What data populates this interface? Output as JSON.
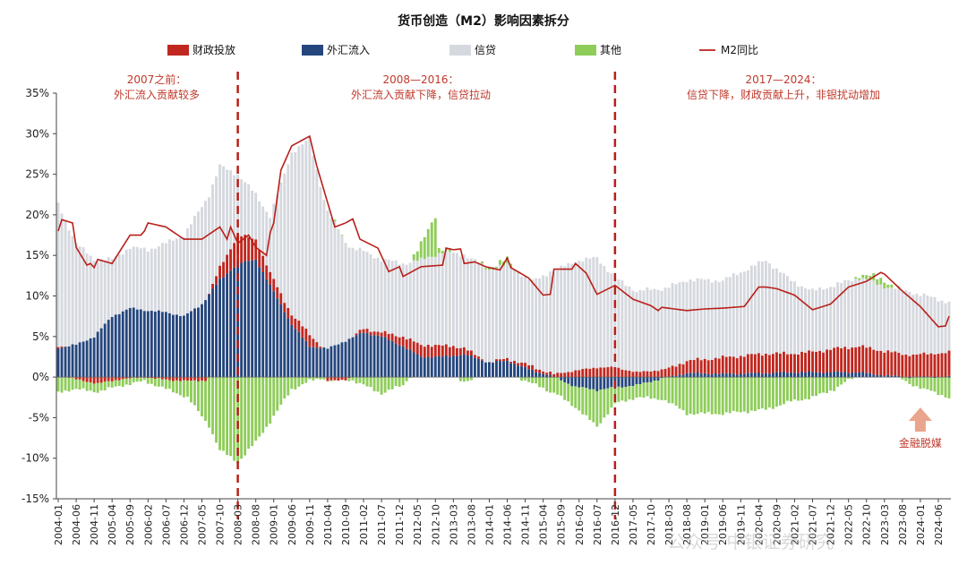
{
  "chart_data": {
    "type": "bar",
    "title": "货币创造（M2）影响因素拆分",
    "legend": [
      {
        "name": "财政投放",
        "kind": "bar",
        "color": "#c0271f"
      },
      {
        "name": "外汇流入",
        "kind": "bar",
        "color": "#25467d"
      },
      {
        "name": "信贷",
        "kind": "bar",
        "color": "#d5d8de"
      },
      {
        "name": "其他",
        "kind": "bar",
        "color": "#8fcd5a"
      },
      {
        "name": "M2同比",
        "kind": "line",
        "color": "#b8201a"
      }
    ],
    "y_axis": {
      "min": -15,
      "max": 35,
      "step": 5,
      "unit": "%",
      "ticks": [
        "35%",
        "30%",
        "25%",
        "20%",
        "15%",
        "10%",
        "5%",
        "0%",
        "-5%",
        "-10%",
        "-15%"
      ]
    },
    "x_start": "2004-01",
    "x_end": "2024-09",
    "x_ticks": [
      "2004-01",
      "2004-06",
      "2004-11",
      "2005-04",
      "2005-09",
      "2006-02",
      "2006-07",
      "2006-12",
      "2007-05",
      "2007-10",
      "2008-03",
      "2008-08",
      "2009-01",
      "2009-06",
      "2009-11",
      "2010-04",
      "2010-09",
      "2011-02",
      "2011-07",
      "2011-12",
      "2012-05",
      "2012-10",
      "2013-03",
      "2013-08",
      "2014-01",
      "2014-06",
      "2014-11",
      "2015-04",
      "2015-09",
      "2016-02",
      "2016-07",
      "2016-12",
      "2017-05",
      "2017-10",
      "2018-03",
      "2018-08",
      "2019-01",
      "2019-06",
      "2019-11",
      "2020-04",
      "2020-09",
      "2021-02",
      "2021-07",
      "2021-12",
      "2022-05",
      "2022-10",
      "2023-03",
      "2023-08",
      "2024-01",
      "2024-06"
    ],
    "series_anchor_points": {
      "财政投放": [
        [
          "2004-01",
          0.3
        ],
        [
          "2004-06",
          -0.3
        ],
        [
          "2004-12",
          -0.8
        ],
        [
          "2005-06",
          -0.3
        ],
        [
          "2006-01",
          0
        ],
        [
          "2006-06",
          -0.3
        ],
        [
          "2007-01",
          -0.5
        ],
        [
          "2007-06",
          -0.4
        ],
        [
          "2007-10",
          1.5
        ],
        [
          "2008-03",
          3.5
        ],
        [
          "2008-08",
          2.5
        ],
        [
          "2008-12",
          1.5
        ],
        [
          "2009-06",
          1.2
        ],
        [
          "2009-11",
          1.5
        ],
        [
          "2010-04",
          -0.5
        ],
        [
          "2010-09",
          -0.3
        ],
        [
          "2011-02",
          0.5
        ],
        [
          "2011-07",
          0.5
        ],
        [
          "2012-01",
          1.2
        ],
        [
          "2012-08",
          1.5
        ],
        [
          "2013-03",
          1.2
        ],
        [
          "2013-08",
          0.5
        ],
        [
          "2014-01",
          0
        ],
        [
          "2014-06",
          0.3
        ],
        [
          "2015-01",
          0.5
        ],
        [
          "2015-06",
          0.3
        ],
        [
          "2016-01",
          0.8
        ],
        [
          "2016-07",
          1.2
        ],
        [
          "2016-12",
          1.2
        ],
        [
          "2017-06",
          0.6
        ],
        [
          "2018-01",
          0.9
        ],
        [
          "2018-08",
          1.5
        ],
        [
          "2019-06",
          2.0
        ],
        [
          "2020-06",
          2.4
        ],
        [
          "2021-01",
          2.3
        ],
        [
          "2021-07",
          2.5
        ],
        [
          "2022-01",
          2.9
        ],
        [
          "2022-08",
          3.2
        ],
        [
          "2023-03",
          3.0
        ],
        [
          "2023-10",
          2.7
        ],
        [
          "2024-09",
          3.0
        ]
      ],
      "外汇流入": [
        [
          "2004-01",
          3.6
        ],
        [
          "2004-06",
          4.0
        ],
        [
          "2004-11",
          5.0
        ],
        [
          "2005-04",
          7.5
        ],
        [
          "2005-09",
          8.5
        ],
        [
          "2006-02",
          8.2
        ],
        [
          "2006-07",
          8.0
        ],
        [
          "2006-12",
          7.5
        ],
        [
          "2007-05",
          9.0
        ],
        [
          "2007-10",
          12.0
        ],
        [
          "2008-03",
          14.0
        ],
        [
          "2008-08",
          14.5
        ],
        [
          "2009-01",
          10.5
        ],
        [
          "2009-06",
          6.5
        ],
        [
          "2009-11",
          3.8
        ],
        [
          "2010-04",
          3.5
        ],
        [
          "2010-09",
          4.5
        ],
        [
          "2011-02",
          5.5
        ],
        [
          "2011-07",
          5.0
        ],
        [
          "2012-01",
          3.8
        ],
        [
          "2012-06",
          2.5
        ],
        [
          "2012-12",
          2.5
        ],
        [
          "2013-06",
          2.8
        ],
        [
          "2014-01",
          1.8
        ],
        [
          "2014-06",
          2.0
        ],
        [
          "2015-01",
          0.8
        ],
        [
          "2015-06",
          0.2
        ],
        [
          "2016-01",
          -1.2
        ],
        [
          "2016-07",
          -1.6
        ],
        [
          "2016-12",
          -1.3
        ],
        [
          "2017-06",
          -1.0
        ],
        [
          "2018-01",
          -0.2
        ],
        [
          "2018-08",
          0.5
        ],
        [
          "2019-06",
          0.4
        ],
        [
          "2020-06",
          0.5
        ],
        [
          "2021-01",
          0.6
        ],
        [
          "2021-07",
          0.6
        ],
        [
          "2022-01",
          0.6
        ],
        [
          "2022-08",
          0.6
        ],
        [
          "2023-03",
          0.2
        ],
        [
          "2023-10",
          0
        ],
        [
          "2024-09",
          0
        ]
      ],
      "信贷": [
        [
          "2004-01",
          17.5
        ],
        [
          "2004-06",
          12.5
        ],
        [
          "2004-11",
          9.5
        ],
        [
          "2005-04",
          7.0
        ],
        [
          "2005-09",
          7.5
        ],
        [
          "2006-02",
          7.5
        ],
        [
          "2006-07",
          8.5
        ],
        [
          "2006-12",
          10.0
        ],
        [
          "2007-05",
          12.0
        ],
        [
          "2007-10",
          12.5
        ],
        [
          "2008-03",
          7.5
        ],
        [
          "2008-08",
          5.5
        ],
        [
          "2008-12",
          7.0
        ],
        [
          "2009-06",
          20.0
        ],
        [
          "2009-11",
          24.0
        ],
        [
          "2010-04",
          17.0
        ],
        [
          "2010-09",
          12.0
        ],
        [
          "2011-02",
          9.5
        ],
        [
          "2011-07",
          9.0
        ],
        [
          "2012-01",
          9.0
        ],
        [
          "2012-06",
          10.5
        ],
        [
          "2012-12",
          11.5
        ],
        [
          "2013-06",
          11.5
        ],
        [
          "2014-01",
          11.5
        ],
        [
          "2014-06",
          11.5
        ],
        [
          "2015-01",
          10.5
        ],
        [
          "2015-06",
          12.5
        ],
        [
          "2016-01",
          13.5
        ],
        [
          "2016-07",
          13.5
        ],
        [
          "2016-12",
          11.0
        ],
        [
          "2017-06",
          10.0
        ],
        [
          "2018-01",
          10.0
        ],
        [
          "2018-08",
          10.0
        ],
        [
          "2019-06",
          9.5
        ],
        [
          "2020-06",
          11.5
        ],
        [
          "2021-01",
          9.0
        ],
        [
          "2021-07",
          7.5
        ],
        [
          "2022-01",
          7.8
        ],
        [
          "2022-08",
          8.5
        ],
        [
          "2023-03",
          8.0
        ],
        [
          "2023-10",
          7.8
        ],
        [
          "2024-09",
          6.2
        ]
      ],
      "其他": [
        [
          "2004-01",
          -2.0
        ],
        [
          "2004-06",
          -1.2
        ],
        [
          "2004-12",
          -1.0
        ],
        [
          "2005-06",
          -0.8
        ],
        [
          "2006-01",
          -0.5
        ],
        [
          "2006-06",
          -1.0
        ],
        [
          "2007-01",
          -2.0
        ],
        [
          "2007-06",
          -5.0
        ],
        [
          "2007-10",
          -9.0
        ],
        [
          "2008-03",
          -10.5
        ],
        [
          "2008-08",
          -8.0
        ],
        [
          "2008-12",
          -5.5
        ],
        [
          "2009-06",
          -1.5
        ],
        [
          "2009-11",
          -0.5
        ],
        [
          "2010-04",
          0
        ],
        [
          "2010-09",
          0
        ],
        [
          "2011-02",
          -1.0
        ],
        [
          "2011-07",
          -2.0
        ],
        [
          "2012-01",
          -1.0
        ],
        [
          "2012-06",
          1.8
        ],
        [
          "2012-10",
          5.0
        ],
        [
          "2012-11",
          0.6
        ],
        [
          "2013-06",
          -0.5
        ],
        [
          "2014-01",
          0.3
        ],
        [
          "2014-06",
          0.6
        ],
        [
          "2015-01",
          -0.8
        ],
        [
          "2015-06",
          -1.8
        ],
        [
          "2016-01",
          -2.5
        ],
        [
          "2016-07",
          -4.5
        ],
        [
          "2016-12",
          -2.0
        ],
        [
          "2017-06",
          -1.5
        ],
        [
          "2018-01",
          -2.5
        ],
        [
          "2018-08",
          -4.5
        ],
        [
          "2019-06",
          -4.5
        ],
        [
          "2020-06",
          -4.0
        ],
        [
          "2021-01",
          -3.0
        ],
        [
          "2021-07",
          -2.5
        ],
        [
          "2022-01",
          -1.5
        ],
        [
          "2022-08",
          0.4
        ],
        [
          "2023-03",
          0.8
        ],
        [
          "2023-10",
          -0.8
        ],
        [
          "2024-09",
          -2.5
        ]
      ],
      "M2同比": [
        [
          "2004-01",
          18
        ],
        [
          "2004-02",
          19.4
        ],
        [
          "2004-05",
          19
        ],
        [
          "2004-06",
          16
        ],
        [
          "2004-09",
          13.8
        ],
        [
          "2004-10",
          14
        ],
        [
          "2004-11",
          13.5
        ],
        [
          "2004-12",
          14.5
        ],
        [
          "2005-04",
          14
        ],
        [
          "2005-09",
          17.5
        ],
        [
          "2005-12",
          17.5
        ],
        [
          "2006-01",
          18
        ],
        [
          "2006-02",
          19.0
        ],
        [
          "2006-07",
          18.5
        ],
        [
          "2006-12",
          17
        ],
        [
          "2007-05",
          17
        ],
        [
          "2007-10",
          18.5
        ],
        [
          "2007-12",
          17
        ],
        [
          "2008-01",
          18.5
        ],
        [
          "2008-03",
          16.5
        ],
        [
          "2008-06",
          17.5
        ],
        [
          "2008-08",
          16
        ],
        [
          "2008-11",
          15
        ],
        [
          "2008-12",
          17.8
        ],
        [
          "2009-01",
          19
        ],
        [
          "2009-03",
          25.5
        ],
        [
          "2009-06",
          28.5
        ],
        [
          "2009-11",
          29.7
        ],
        [
          "2010-01",
          26
        ],
        [
          "2010-04",
          21.5
        ],
        [
          "2010-06",
          18.5
        ],
        [
          "2010-09",
          19.0
        ],
        [
          "2010-11",
          19.5
        ],
        [
          "2011-01",
          17
        ],
        [
          "2011-06",
          15.9
        ],
        [
          "2011-09",
          13.0
        ],
        [
          "2011-12",
          13.6
        ],
        [
          "2012-01",
          12.4
        ],
        [
          "2012-06",
          13.6
        ],
        [
          "2012-12",
          13.8
        ],
        [
          "2013-01",
          15.9
        ],
        [
          "2013-03",
          15.7
        ],
        [
          "2013-05",
          15.8
        ],
        [
          "2013-06",
          14.0
        ],
        [
          "2013-09",
          14.2
        ],
        [
          "2013-12",
          13.6
        ],
        [
          "2014-04",
          13.2
        ],
        [
          "2014-06",
          14.7
        ],
        [
          "2014-07",
          13.5
        ],
        [
          "2014-12",
          12.2
        ],
        [
          "2015-04",
          10.1
        ],
        [
          "2015-06",
          10.2
        ],
        [
          "2015-07",
          13.3
        ],
        [
          "2015-12",
          13.3
        ],
        [
          "2016-01",
          14.0
        ],
        [
          "2016-04",
          12.8
        ],
        [
          "2016-07",
          10.2
        ],
        [
          "2016-12",
          11.3
        ],
        [
          "2017-05",
          9.6
        ],
        [
          "2017-10",
          8.8
        ],
        [
          "2017-12",
          8.2
        ],
        [
          "2018-01",
          8.6
        ],
        [
          "2018-08",
          8.2
        ],
        [
          "2019-01",
          8.4
        ],
        [
          "2019-06",
          8.5
        ],
        [
          "2019-12",
          8.7
        ],
        [
          "2020-04",
          11.1
        ],
        [
          "2020-06",
          11.1
        ],
        [
          "2020-09",
          10.9
        ],
        [
          "2021-02",
          10.1
        ],
        [
          "2021-07",
          8.3
        ],
        [
          "2021-12",
          9.0
        ],
        [
          "2022-05",
          11.1
        ],
        [
          "2022-10",
          11.8
        ],
        [
          "2023-02",
          12.9
        ],
        [
          "2023-03",
          12.7
        ],
        [
          "2023-08",
          10.6
        ],
        [
          "2024-01",
          8.7
        ],
        [
          "2024-04",
          7.2
        ],
        [
          "2024-06",
          6.2
        ],
        [
          "2024-08",
          6.3
        ],
        [
          "2024-09",
          7.5
        ]
      ]
    },
    "divider_dates": [
      "2008-03",
      "2016-12"
    ],
    "period_annotations": [
      {
        "lines": [
          "2007之前：",
          "外汇流入贡献较多"
        ]
      },
      {
        "lines": [
          "2008—2016：",
          "外汇流入贡献下降，信贷拉动"
        ]
      },
      {
        "lines": [
          "2017—2024：",
          "信贷下降，财政贡献上升，非银扰动增加"
        ]
      }
    ],
    "callout": {
      "label": "金融脱媒",
      "date": "2024-01"
    },
    "grid": false,
    "legend_position": "top"
  },
  "watermark": "公众号·中银证券研究"
}
